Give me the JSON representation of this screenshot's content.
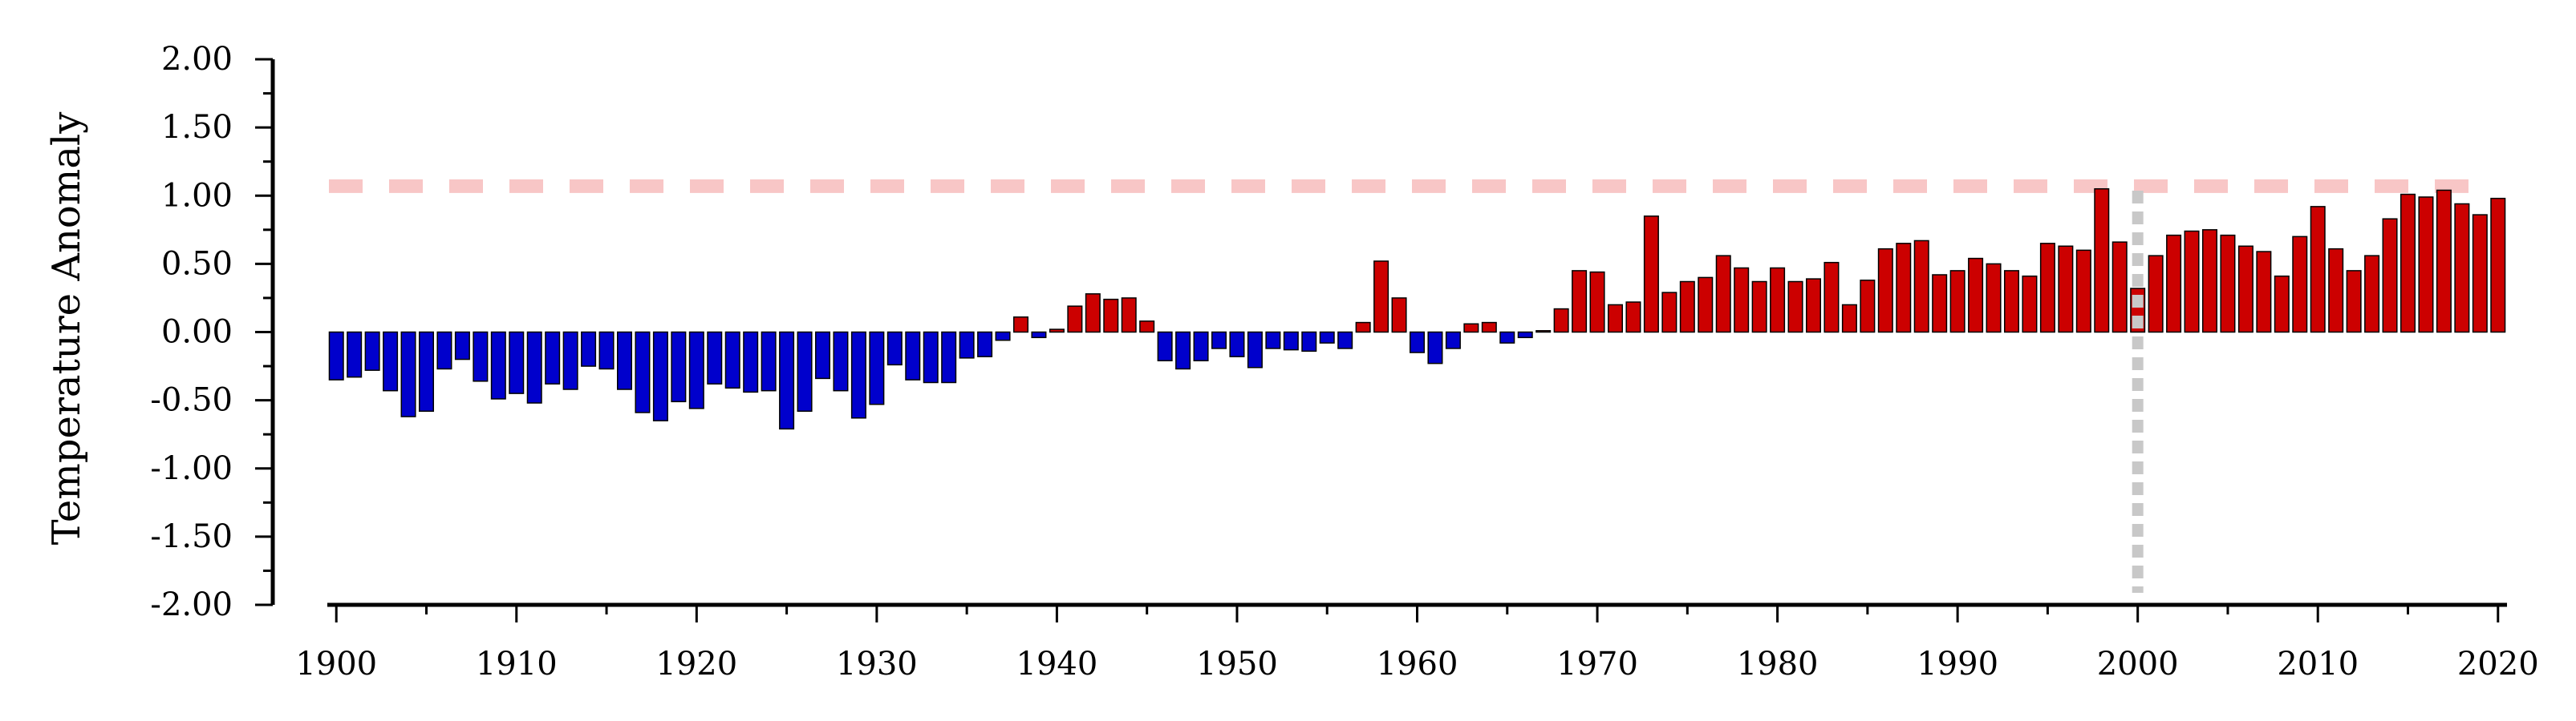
{
  "chart_data": {
    "type": "bar",
    "title": "",
    "xlabel": "",
    "ylabel": "Temperature Anomaly",
    "ylim": [
      -2.0,
      2.0
    ],
    "xlim": [
      1899.5,
      2020.5
    ],
    "y_tick_labels": [
      "2.00",
      "1.50",
      "1.00",
      "0.50",
      "0.00",
      "-0.50",
      "-1.00",
      "-1.50",
      "-2.00"
    ],
    "x_tick_labels": [
      "1900",
      "1910",
      "1920",
      "1930",
      "1940",
      "1950",
      "1960",
      "1970",
      "1980",
      "1990",
      "2000",
      "2010",
      "2020"
    ],
    "grid": false,
    "legend": "none",
    "reference_line": {
      "y": 1.07,
      "style": "dashed",
      "color": "#f8c6c6"
    },
    "marker_line": {
      "x": 2000,
      "style": "dotted",
      "color": "#c8c8c8"
    },
    "colors": {
      "positive": "#cc0000",
      "negative": "#0000cc",
      "edge": "#000000"
    },
    "x": [
      1900,
      1901,
      1902,
      1903,
      1904,
      1905,
      1906,
      1907,
      1908,
      1909,
      1910,
      1911,
      1912,
      1913,
      1914,
      1915,
      1916,
      1917,
      1918,
      1919,
      1920,
      1921,
      1922,
      1923,
      1924,
      1925,
      1926,
      1927,
      1928,
      1929,
      1930,
      1931,
      1932,
      1933,
      1934,
      1935,
      1936,
      1937,
      1938,
      1939,
      1940,
      1941,
      1942,
      1943,
      1944,
      1945,
      1946,
      1947,
      1948,
      1949,
      1950,
      1951,
      1952,
      1953,
      1954,
      1955,
      1956,
      1957,
      1958,
      1959,
      1960,
      1961,
      1962,
      1963,
      1964,
      1965,
      1966,
      1967,
      1968,
      1969,
      1970,
      1971,
      1972,
      1973,
      1974,
      1975,
      1976,
      1977,
      1978,
      1979,
      1980,
      1981,
      1982,
      1983,
      1984,
      1985,
      1986,
      1987,
      1988,
      1989,
      1990,
      1991,
      1992,
      1993,
      1994,
      1995,
      1996,
      1997,
      1998,
      1999,
      2000,
      2001,
      2002,
      2003,
      2004,
      2005,
      2006,
      2007,
      2008,
      2009,
      2010,
      2011,
      2012,
      2013,
      2014,
      2015,
      2016,
      2017,
      2018,
      2019,
      2020
    ],
    "values": [
      -0.35,
      -0.33,
      -0.28,
      -0.43,
      -0.62,
      -0.58,
      -0.27,
      -0.2,
      -0.36,
      -0.49,
      -0.45,
      -0.52,
      -0.38,
      -0.42,
      -0.25,
      -0.27,
      -0.42,
      -0.59,
      -0.65,
      -0.51,
      -0.56,
      -0.38,
      -0.41,
      -0.44,
      -0.43,
      -0.71,
      -0.58,
      -0.34,
      -0.43,
      -0.63,
      -0.53,
      -0.24,
      -0.35,
      -0.37,
      -0.37,
      -0.19,
      -0.18,
      -0.06,
      0.11,
      -0.04,
      0.02,
      0.19,
      0.28,
      0.24,
      0.25,
      0.08,
      -0.21,
      -0.27,
      -0.21,
      -0.12,
      -0.18,
      -0.26,
      -0.12,
      -0.13,
      -0.14,
      -0.08,
      -0.12,
      0.07,
      0.52,
      0.25,
      -0.15,
      -0.23,
      -0.12,
      0.06,
      0.07,
      -0.08,
      -0.04,
      0.01,
      0.17,
      0.45,
      0.44,
      0.2,
      0.22,
      0.85,
      0.29,
      0.37,
      0.4,
      0.56,
      0.47,
      0.37,
      0.47,
      0.37,
      0.39,
      0.51,
      0.2,
      0.38,
      0.61,
      0.65,
      0.67,
      0.42,
      0.45,
      0.54,
      0.5,
      0.45,
      0.41,
      0.65,
      0.63,
      0.6,
      1.05,
      0.66,
      0.32,
      0.56,
      0.71,
      0.74,
      0.75,
      0.71,
      0.63,
      0.59,
      0.41,
      0.7,
      0.92,
      0.61,
      0.45,
      0.56,
      0.83,
      1.01,
      0.99,
      1.04,
      0.94,
      0.86,
      0.98
    ]
  }
}
